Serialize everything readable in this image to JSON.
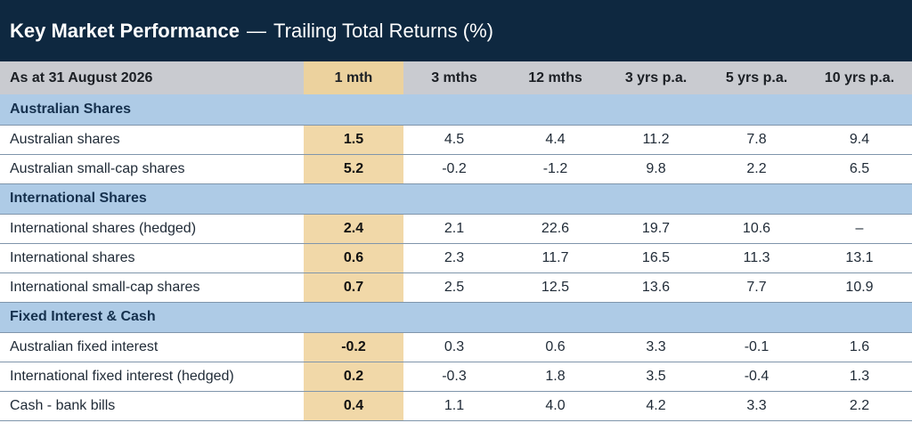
{
  "title": {
    "main": "Key Market Performance",
    "separator": "—",
    "sub": "Trailing Total Returns (%)"
  },
  "colors": {
    "title_bg": "#0e2840",
    "header_bg": "#c9cbd0",
    "highlight": "#f1d8a8",
    "section_bg": "#aecbe6",
    "rule": "#7f95ab"
  },
  "chart_data": {
    "type": "table",
    "title": "Key Market Performance — Trailing Total Returns (%)",
    "columns": [
      "As at 31 August 2026",
      "1 mth",
      "3 mths",
      "12 mths",
      "3 yrs p.a.",
      "5 yrs p.a.",
      "10 yrs p.a."
    ],
    "highlighted_column": "1 mth",
    "sections": [
      {
        "name": "Australian Shares",
        "rows": [
          {
            "label": "Australian shares",
            "values": [
              "1.5",
              "4.5",
              "4.4",
              "11.2",
              "7.8",
              "9.4"
            ]
          },
          {
            "label": "Australian small-cap shares",
            "values": [
              "5.2",
              "-0.2",
              "-1.2",
              "9.8",
              "2.2",
              "6.5"
            ]
          }
        ]
      },
      {
        "name": "International Shares",
        "rows": [
          {
            "label": "International shares (hedged)",
            "values": [
              "2.4",
              "2.1",
              "22.6",
              "19.7",
              "10.6",
              "–"
            ]
          },
          {
            "label": "International shares",
            "values": [
              "0.6",
              "2.3",
              "11.7",
              "16.5",
              "11.3",
              "13.1"
            ]
          },
          {
            "label": "International small-cap shares",
            "values": [
              "0.7",
              "2.5",
              "12.5",
              "13.6",
              "7.7",
              "10.9"
            ]
          }
        ]
      },
      {
        "name": "Fixed Interest & Cash",
        "rows": [
          {
            "label": "Australian fixed interest",
            "values": [
              "-0.2",
              "0.3",
              "0.6",
              "3.3",
              "-0.1",
              "1.6"
            ]
          },
          {
            "label": "International fixed interest (hedged)",
            "values": [
              "0.2",
              "-0.3",
              "1.8",
              "3.5",
              "-0.4",
              "1.3"
            ]
          },
          {
            "label": "Cash - bank bills",
            "values": [
              "0.4",
              "1.1",
              "4.0",
              "4.2",
              "3.3",
              "2.2"
            ]
          }
        ]
      }
    ]
  }
}
